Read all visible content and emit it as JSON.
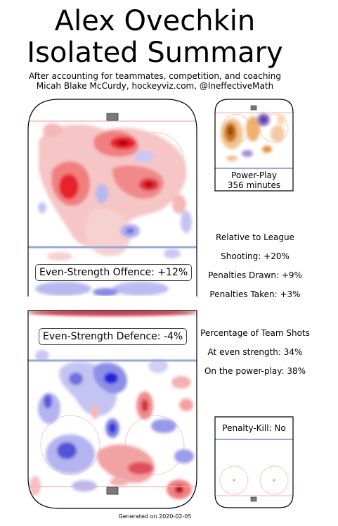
{
  "header": {
    "title_line1": "Alex Ovechkin",
    "title_line2": "Isolated Summary",
    "subtitle_line1": "After accounting for teammates, competition, and coaching",
    "subtitle_line2": "Micah Blake McCurdy, hockeyviz.com, @IneffectiveMath"
  },
  "panels": {
    "offence_label": "Even-Strength Offence: +12%",
    "defence_label": "Even-Strength Defence: -4%",
    "powerplay_line1": "Power-Play",
    "powerplay_line2": "356 minutes",
    "penalty_kill_label": "Penalty-Kill: No"
  },
  "relative": {
    "heading": "Relative to League",
    "shooting": "Shooting: +20%",
    "penalties_drawn": "Penalties Drawn: +9%",
    "penalties_taken": "Penalties Taken: +3%"
  },
  "team_shots": {
    "heading": "Percentage of Team Shots",
    "even_strength": "At even strength: 34%",
    "power_play": "On the power-play: 38%"
  },
  "footer": {
    "generated": "Generated on 2020-02-05"
  },
  "chart_data": {
    "type": "heatmap",
    "colors": {
      "above_league": "#e8202a",
      "below_league": "#2424d8",
      "ice_lines": "#9aa8d8"
    },
    "offence_pct": 12,
    "defence_pct": -4,
    "shooting_pct": 20,
    "penalties_drawn_pct": 9,
    "penalties_taken_pct": 3,
    "team_shots_even_strength_pct": 34,
    "team_shots_power_play_pct": 38,
    "power_play_minutes": 356
  }
}
